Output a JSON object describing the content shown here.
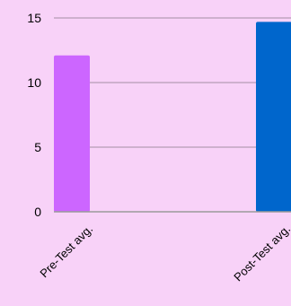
{
  "chart_data": {
    "type": "bar",
    "title": "",
    "xlabel": "",
    "ylabel": "",
    "categories": [
      "Pre-Test avg.",
      "Post-Test avg."
    ],
    "series": [
      {
        "values": [
          12.1,
          14.7
        ],
        "colors": [
          "#cc66ff",
          "#0066cc"
        ]
      }
    ],
    "ylim": [
      0,
      15
    ],
    "yticks": [
      0,
      5,
      10,
      15
    ],
    "grid": true,
    "legend": "none"
  },
  "colors": {
    "background": "#f8d2f8",
    "gridline": "#a58fa5",
    "axis": "#9a9a9a",
    "text": "#000000"
  }
}
